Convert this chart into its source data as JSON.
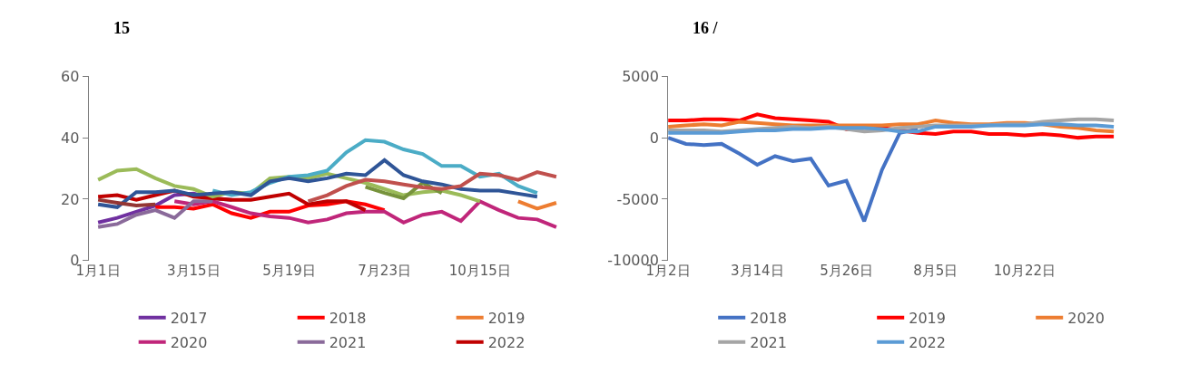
{
  "chart_data": [
    {
      "type": "line",
      "title": "15",
      "categories": [
        "1月1日",
        null,
        null,
        null,
        null,
        "3月15日",
        null,
        null,
        null,
        null,
        "5月19日",
        null,
        null,
        null,
        null,
        "7月23日",
        null,
        null,
        null,
        null,
        "10月15日",
        null,
        null,
        null,
        null
      ],
      "ylim": [
        0,
        60
      ],
      "yticks": [
        0,
        20,
        40,
        60
      ],
      "legend": "bottom",
      "marker": "none",
      "series": [
        {
          "name": "2017",
          "color": "#7030a0",
          "values": [
            12.4,
            13.9,
            15.9,
            17.9,
            21.3,
            21.8,
            20.3,
            19.8,
            null,
            null,
            null,
            null,
            null,
            null,
            null,
            null,
            null,
            null,
            null,
            null,
            null,
            null,
            null,
            null,
            null
          ]
        },
        {
          "name": "2018",
          "color": "#ff0000",
          "values": [
            null,
            null,
            null,
            17.4,
            17.4,
            16.9,
            18.3,
            15.4,
            13.9,
            15.9,
            15.9,
            17.9,
            18.3,
            19.3,
            18.3,
            16.4,
            null,
            null,
            null,
            null,
            null,
            null,
            null,
            null,
            null
          ]
        },
        {
          "name": "2019",
          "color": "#ed7d31",
          "values": [
            null,
            null,
            null,
            null,
            null,
            null,
            null,
            null,
            null,
            null,
            null,
            null,
            null,
            null,
            null,
            null,
            null,
            null,
            null,
            null,
            null,
            null,
            19.3,
            16.9,
            18.8
          ]
        },
        {
          "name": "2020",
          "color": "#c0267a",
          "values": [
            null,
            null,
            null,
            null,
            19.3,
            18.3,
            19.3,
            17.4,
            15.4,
            14.4,
            13.9,
            12.4,
            13.4,
            15.4,
            15.9,
            15.9,
            12.4,
            14.9,
            15.9,
            12.9,
            19.3,
            16.4,
            13.9,
            13.4,
            10.9
          ]
        },
        {
          "name": "2021",
          "color": "#8a6a9a",
          "values": [
            10.9,
            11.9,
            14.9,
            16.4,
            13.9,
            19.3,
            19.3,
            null,
            null,
            null,
            null,
            null,
            null,
            null,
            null,
            null,
            null,
            null,
            null,
            null,
            null,
            null,
            null,
            null,
            null
          ]
        },
        {
          "name": "2022",
          "color": "#c00000",
          "values": [
            20.8,
            21.3,
            19.8,
            21.3,
            22.8,
            20.8,
            20.3,
            19.8,
            19.8,
            20.8,
            21.8,
            18.3,
            19.3,
            19.3,
            16.4,
            null,
            null,
            null,
            null,
            null,
            null,
            null,
            null,
            null,
            null
          ]
        },
        {
          "color": "#9bbb59",
          "values": [
            26.3,
            29.3,
            29.8,
            26.8,
            24.3,
            23.3,
            20.8,
            22.3,
            21.8,
            26.8,
            27.3,
            26.8,
            28.3,
            26.8,
            25.3,
            23.3,
            21.3,
            22.3,
            22.8,
            21.3,
            19.3,
            null,
            null,
            null,
            null
          ]
        },
        {
          "color": "#77933c",
          "values": [
            null,
            null,
            null,
            null,
            null,
            null,
            null,
            null,
            null,
            null,
            null,
            null,
            null,
            null,
            24.0,
            22.0,
            20.3,
            25.3,
            22.0,
            null,
            null,
            null,
            null,
            null,
            null
          ]
        },
        {
          "color": "#4bacc6",
          "values": [
            null,
            null,
            null,
            null,
            null,
            null,
            22.8,
            21.3,
            22.3,
            25.3,
            27.3,
            27.8,
            29.3,
            35.2,
            39.2,
            38.7,
            36.2,
            34.7,
            30.8,
            30.8,
            27.3,
            28.3,
            24.3,
            22.0,
            null
          ]
        },
        {
          "color": "#2f5597",
          "values": [
            18.3,
            17.4,
            22.3,
            22.3,
            22.8,
            21.3,
            21.8,
            22.3,
            21.3,
            25.8,
            26.8,
            25.8,
            26.8,
            28.3,
            27.8,
            32.7,
            27.8,
            25.8,
            24.8,
            23.3,
            22.8,
            22.8,
            21.8,
            20.8,
            null
          ]
        },
        {
          "color": "#c0504d",
          "values": [
            null,
            null,
            null,
            null,
            null,
            null,
            null,
            null,
            null,
            null,
            null,
            19.3,
            21.3,
            24.3,
            26.3,
            25.8,
            24.8,
            23.8,
            23.3,
            24.3,
            28.3,
            27.8,
            26.3,
            28.8,
            27.3
          ]
        },
        {
          "color": "#943634",
          "values": [
            19.8,
            18.8,
            17.9,
            18.3,
            null,
            null,
            null,
            null,
            null,
            null,
            null,
            null,
            null,
            null,
            null,
            null,
            null,
            null,
            null,
            null,
            null,
            null,
            null,
            null,
            null
          ]
        }
      ]
    },
    {
      "type": "line",
      "title": "16 /",
      "categories": [
        "1月2日",
        null,
        null,
        null,
        null,
        "3月14日",
        null,
        null,
        null,
        null,
        "5月26日",
        null,
        null,
        null,
        null,
        "8月5日",
        null,
        null,
        null,
        null,
        "10月22日",
        null,
        null,
        null,
        null,
        null
      ],
      "ylim": [
        -10000,
        5000
      ],
      "yticks": [
        -10000,
        -5000,
        0,
        5000
      ],
      "legend": "bottom",
      "marker": "none",
      "series": [
        {
          "name": "2018",
          "color": "#4472c4",
          "values": [
            0,
            -500,
            -600,
            -500,
            -1300,
            -2200,
            -1500,
            -1900,
            -1700,
            -3900,
            -3500,
            -6800,
            -2600,
            400,
            700,
            null,
            null,
            null,
            null,
            null,
            null,
            null,
            null,
            null,
            null,
            null
          ]
        },
        {
          "name": "2019",
          "color": "#ff0000",
          "values": [
            1400,
            1400,
            1500,
            1500,
            1400,
            1900,
            1600,
            1500,
            1400,
            1300,
            700,
            800,
            800,
            600,
            400,
            300,
            500,
            500,
            300,
            300,
            200,
            300,
            200,
            0,
            100,
            100
          ]
        },
        {
          "name": "2020",
          "color": "#ed7d31",
          "values": [
            900,
            1000,
            1100,
            1000,
            1300,
            1200,
            1100,
            1000,
            1000,
            1000,
            1000,
            1000,
            1000,
            1100,
            1100,
            1400,
            1200,
            1100,
            1100,
            1200,
            1200,
            1100,
            900,
            800,
            600,
            500
          ]
        },
        {
          "name": "2021",
          "color": "#a5a5a5",
          "values": [
            600,
            600,
            600,
            500,
            600,
            700,
            800,
            900,
            800,
            900,
            700,
            500,
            600,
            800,
            900,
            1000,
            1000,
            1000,
            1000,
            1100,
            1100,
            1300,
            1400,
            1500,
            1500,
            1400
          ]
        },
        {
          "name": "2022",
          "color": "#5b9bd5",
          "values": [
            400,
            400,
            400,
            400,
            500,
            600,
            600,
            700,
            700,
            800,
            800,
            800,
            700,
            500,
            500,
            900,
            900,
            900,
            1000,
            1000,
            1000,
            1100,
            1100,
            1000,
            1000,
            900
          ]
        }
      ]
    }
  ]
}
